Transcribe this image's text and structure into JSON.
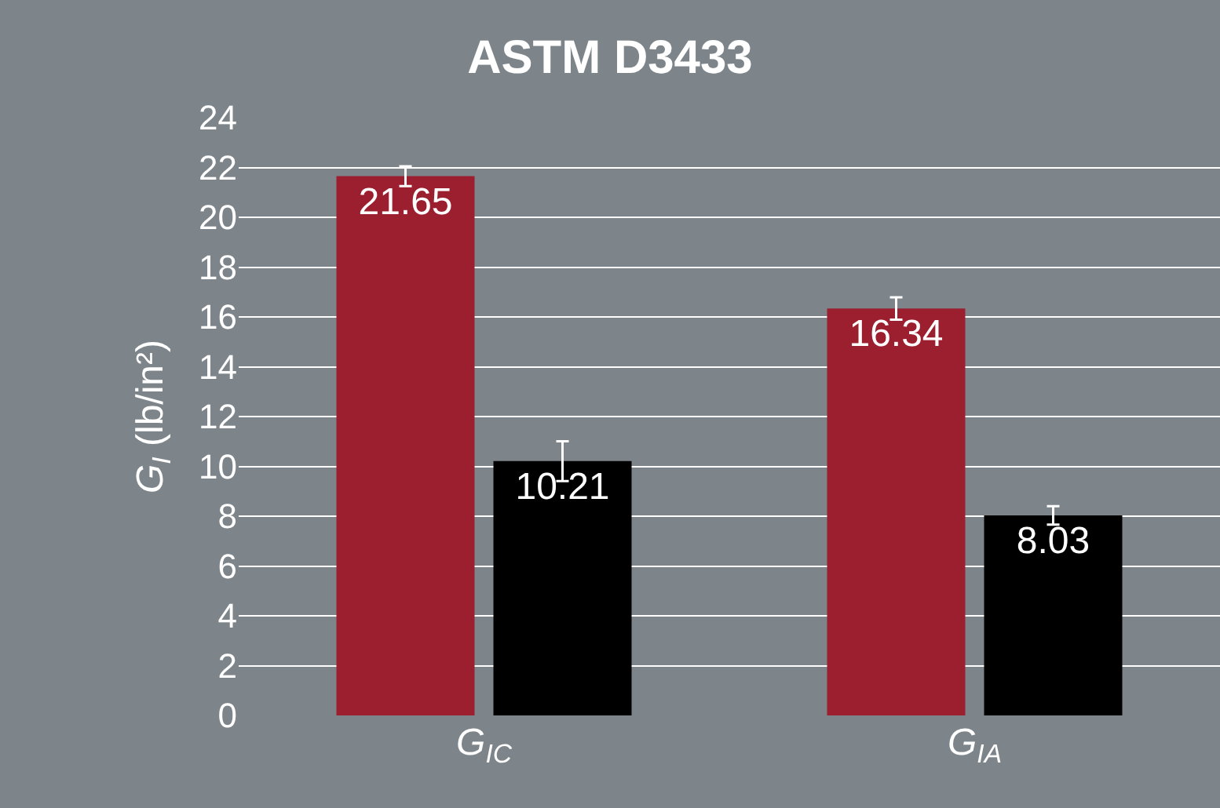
{
  "chart_data": {
    "type": "bar",
    "title": "ASTM D3433",
    "ylabel": "G$_{I}$ (lb/in²)",
    "categories": [
      "G$_{IC}$",
      "G$_{IA}$"
    ],
    "series": [
      {
        "color": "#9b1f2e",
        "values": [
          21.65,
          16.34
        ],
        "errors": [
          0.4,
          0.45
        ]
      },
      {
        "color": "#000000",
        "values": [
          10.21,
          8.03
        ],
        "errors": [
          0.8,
          0.37
        ]
      }
    ],
    "ylim": [
      0,
      24
    ],
    "yticks": [
      0,
      2,
      4,
      6,
      8,
      10,
      12,
      14,
      16,
      18,
      20,
      22,
      24
    ],
    "grid": "y",
    "data_labels": true
  }
}
